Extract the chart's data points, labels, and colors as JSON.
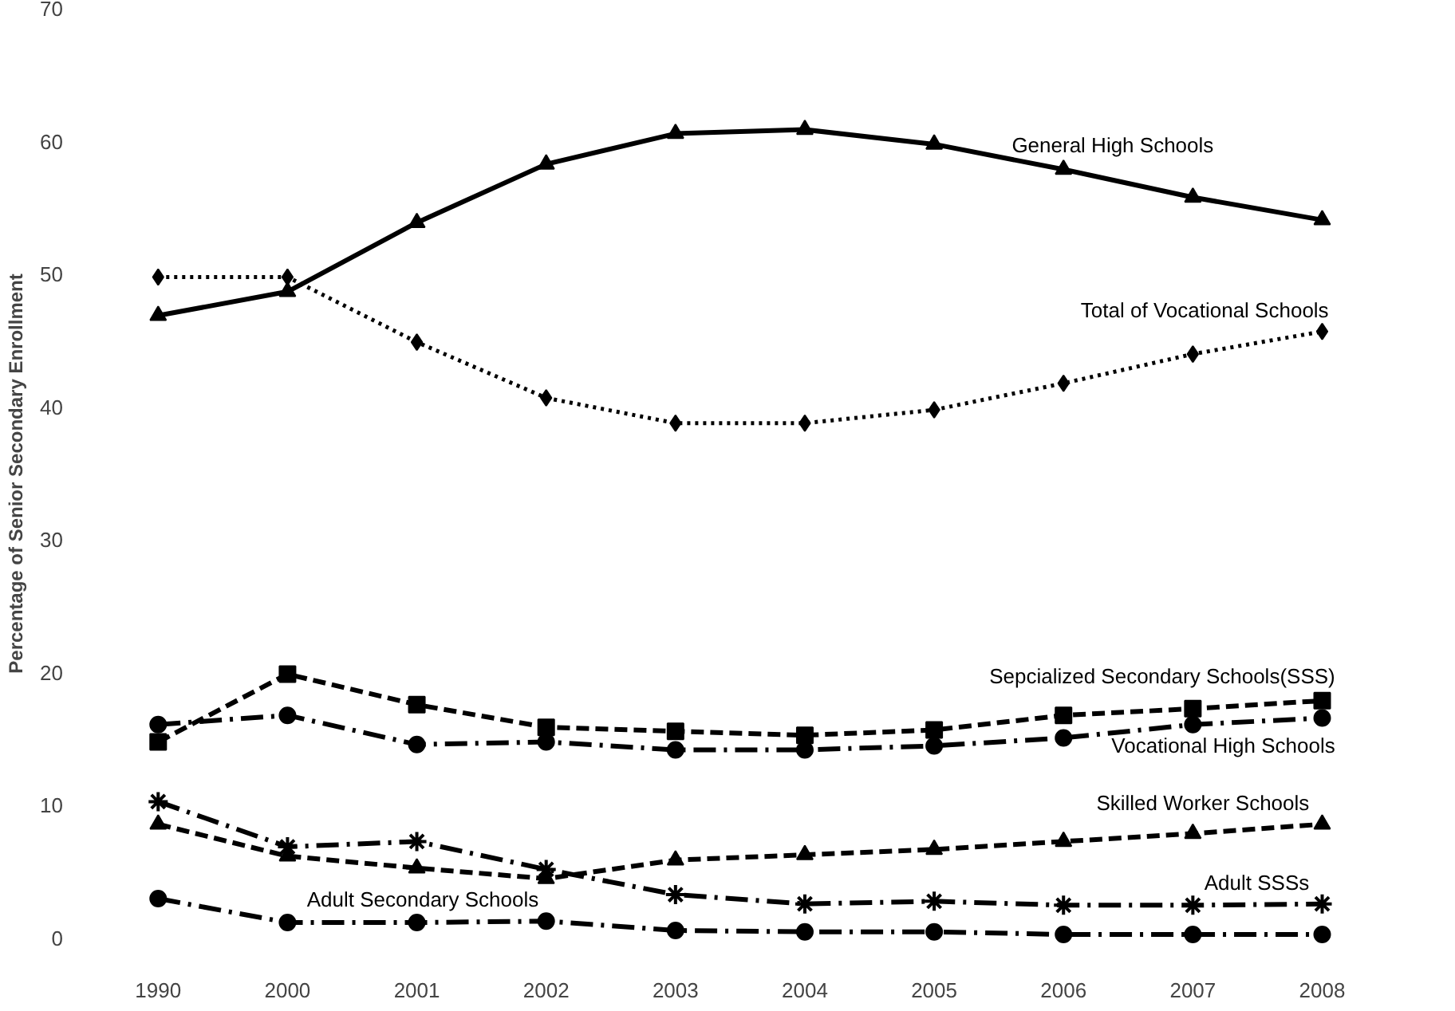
{
  "chart_data": {
    "type": "line",
    "ylabel": "Percentage of Senior Secondary Enrollment",
    "categories": [
      "1990",
      "2000",
      "2001",
      "2002",
      "2003",
      "2004",
      "2005",
      "2006",
      "2007",
      "2008"
    ],
    "ylim": [
      0,
      70
    ],
    "yticks": [
      0,
      10,
      20,
      30,
      40,
      50,
      60,
      70
    ],
    "grid": false,
    "legend": false,
    "series": [
      {
        "name": "General High Schools",
        "color": "#000000",
        "marker": "triangle",
        "line_style": "solid",
        "values": [
          46.9,
          48.7,
          53.9,
          58.3,
          60.6,
          60.9,
          59.8,
          57.9,
          55.8,
          54.1
        ]
      },
      {
        "name": "Total of Vocational Schools",
        "color": "#000000",
        "marker": "diamond",
        "line_style": "dotted",
        "values": [
          49.8,
          49.8,
          44.9,
          40.7,
          38.8,
          38.8,
          39.8,
          41.8,
          44.0,
          45.7
        ]
      },
      {
        "name": "Sepcialized Secondary Schools(SSS)",
        "color": "#000000",
        "marker": "square",
        "line_style": "dashed",
        "values": [
          14.8,
          19.9,
          17.6,
          15.9,
          15.6,
          15.3,
          15.7,
          16.8,
          17.3,
          17.9
        ]
      },
      {
        "name": "Vocational High Schools",
        "color": "#000000",
        "marker": "circle",
        "line_style": "dashdot",
        "values": [
          16.1,
          16.8,
          14.6,
          14.8,
          14.2,
          14.2,
          14.5,
          15.1,
          16.1,
          16.6
        ]
      },
      {
        "name": "Skilled Worker Schools",
        "color": "#000000",
        "marker": "triangle",
        "line_style": "dashed",
        "values": [
          8.6,
          6.2,
          5.3,
          4.5,
          5.9,
          6.3,
          6.7,
          7.3,
          7.9,
          8.6
        ]
      },
      {
        "name": "Adult SSSs",
        "color": "#000000",
        "marker": "cross",
        "line_style": "dashdot",
        "values": [
          10.3,
          6.9,
          7.3,
          5.2,
          3.3,
          2.6,
          2.8,
          2.5,
          2.5,
          2.6
        ]
      },
      {
        "name": "Adult Secondary Schools",
        "color": "#000000",
        "marker": "circle",
        "line_style": "dashdot",
        "values": [
          3.0,
          1.2,
          1.2,
          1.3,
          0.6,
          0.5,
          0.5,
          0.3,
          0.3,
          0.3
        ]
      }
    ]
  }
}
